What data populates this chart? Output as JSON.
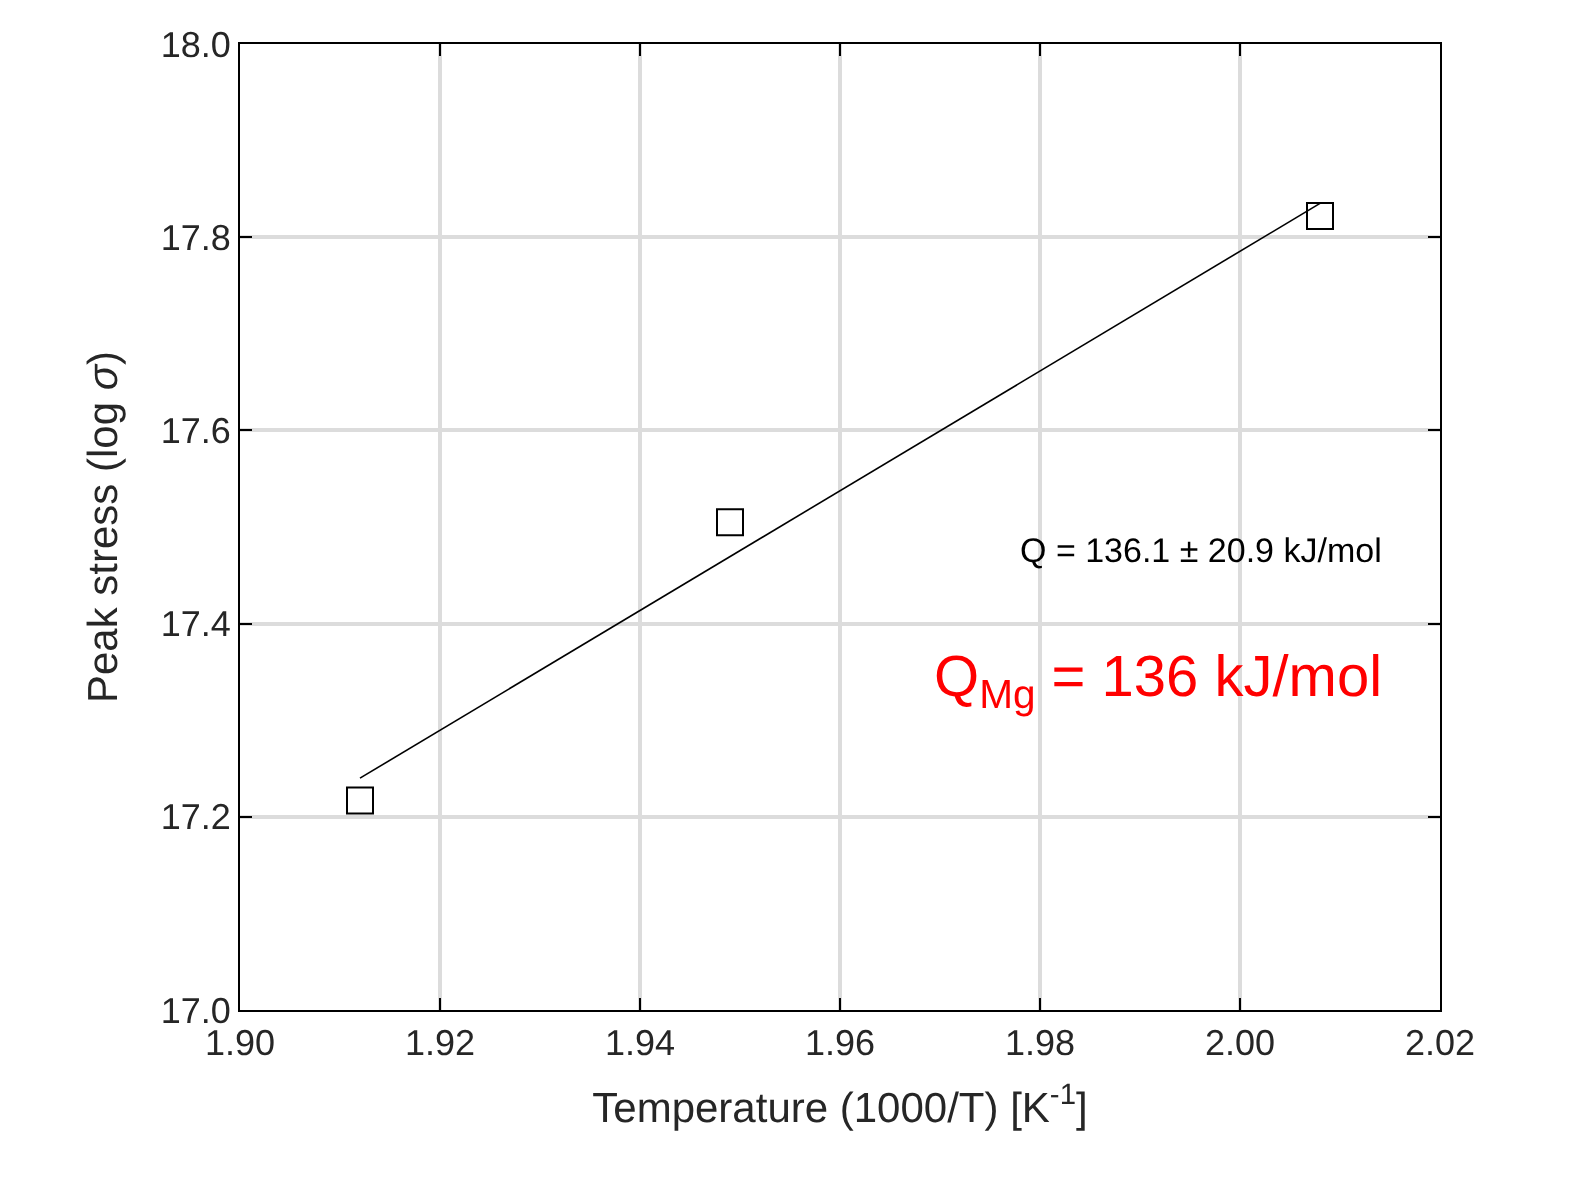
{
  "chart_data": {
    "type": "scatter",
    "xlabel": "Temperature (1000/T) [K$^{-1}$]",
    "ylabel": "Peak stress (log σ)",
    "series": [
      {
        "color": "#000000",
        "marker": "square",
        "x": [
          1.912,
          1.949,
          2.008
        ],
        "values": [
          17.217,
          17.505,
          17.822
        ]
      },
      {
        "type": "line",
        "color": "#000000",
        "marker": "none",
        "line_style": "solid",
        "x": [
          1.912,
          2.008
        ],
        "values": [
          17.24,
          17.835
        ]
      }
    ],
    "xlim": [
      1.9,
      2.02
    ],
    "xticks": [
      {
        "value": 1.9,
        "label": "1.90"
      },
      1.92,
      1.94,
      1.96,
      1.98,
      {
        "value": 2.0,
        "label": "2.00"
      },
      2.02
    ],
    "ylim": [
      17.0,
      18.0
    ],
    "yticks": [
      {
        "value": 17.0,
        "label": "17.0"
      },
      17.2,
      17.4,
      17.6,
      17.8,
      {
        "value": 18.0,
        "label": "18.0"
      }
    ],
    "annotations": [
      "Q = 136.1 ± 20.9 kJ/mol",
      "Q$_{Mg}$ = 136 kJ/mol"
    ],
    "grid": true
  }
}
